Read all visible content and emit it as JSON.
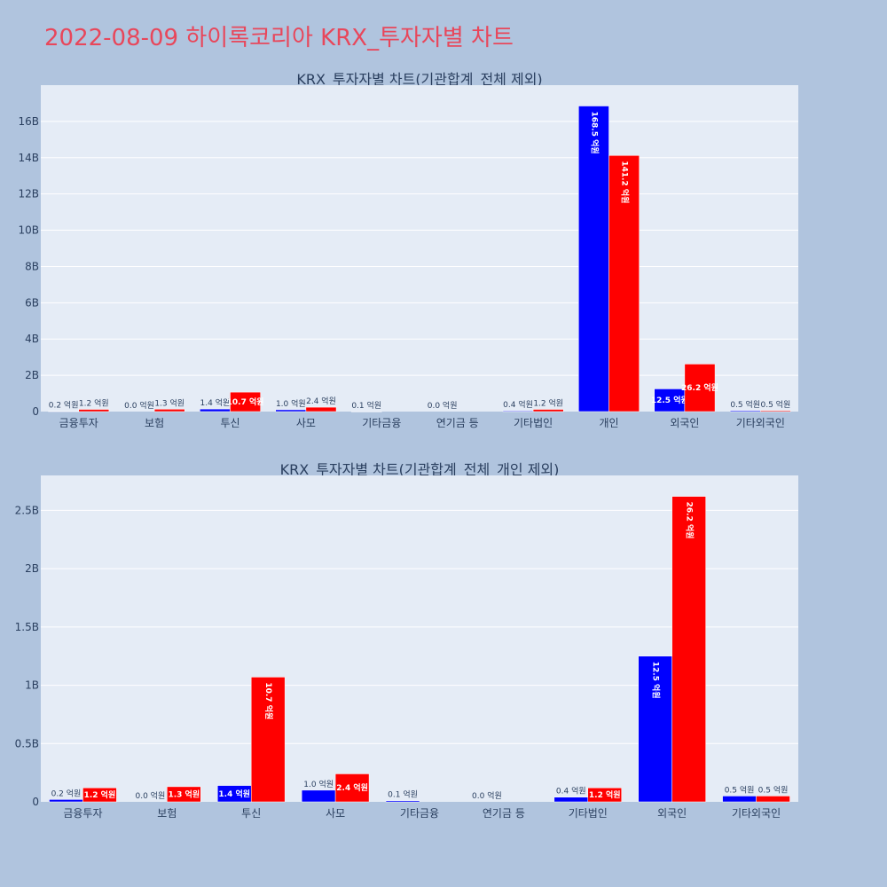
{
  "title": "2022-08-09 하이록코리아 KRX_투자자별 차트",
  "colors": {
    "buy": "#0000ff",
    "sell": "#ff0000",
    "plot_bg": "#e5ecf6",
    "page_bg": "#b0c4de",
    "title": "#e8475b"
  },
  "chart_data": [
    {
      "type": "bar",
      "title": "KRX_투자자별 차트(기관합계_전체 제외)",
      "categories": [
        "금융투자",
        "보험",
        "투신",
        "사모",
        "기타금융",
        "연기금 등",
        "기타법인",
        "개인",
        "외국인",
        "기타외국인"
      ],
      "series": [
        {
          "values": [
            20000000,
            0,
            140000000,
            100000000,
            10000000,
            0,
            40000000,
            16850000000,
            1250000000,
            50000000
          ],
          "labels": [
            "0.2 억원",
            "0.0 억원",
            "1.4 억원",
            "1.0 억원",
            "0.1 억원",
            "0.0 억원",
            "0.4 억원",
            "168.5 억원",
            "12.5 억원",
            "0.5 억원"
          ]
        },
        {
          "values": [
            120000000,
            130000000,
            1070000000,
            240000000,
            null,
            null,
            120000000,
            14120000000,
            2620000000,
            50000000
          ],
          "labels": [
            "1.2 억원",
            "1.3 억원",
            "10.7 억원",
            "2.4 억원",
            "",
            "",
            "1.2 억원",
            "141.2 억원",
            "26.2 억원",
            "0.5 억원"
          ]
        }
      ],
      "ylim": [
        0,
        18000000000
      ],
      "yticks": [
        0,
        2000000000,
        4000000000,
        6000000000,
        8000000000,
        10000000000,
        12000000000,
        14000000000,
        16000000000
      ],
      "ytick_labels": [
        "0",
        "2B",
        "4B",
        "6B",
        "8B",
        "10B",
        "12B",
        "14B",
        "16B"
      ],
      "grid": true,
      "barmode": "group"
    },
    {
      "type": "bar",
      "title": "KRX_투자자별 차트(기관합계_전체_개인 제외)",
      "categories": [
        "금융투자",
        "보험",
        "투신",
        "사모",
        "기타금융",
        "연기금 등",
        "기타법인",
        "외국인",
        "기타외국인"
      ],
      "series": [
        {
          "values": [
            20000000,
            0,
            140000000,
            100000000,
            10000000,
            0,
            40000000,
            1250000000,
            50000000
          ],
          "labels": [
            "0.2 억원",
            "0.0 억원",
            "1.4 억원",
            "1.0 억원",
            "0.1 억원",
            "0.0 억원",
            "0.4 억원",
            "12.5 억원",
            "0.5 억원"
          ]
        },
        {
          "values": [
            120000000,
            130000000,
            1070000000,
            240000000,
            null,
            null,
            120000000,
            2620000000,
            50000000
          ],
          "labels": [
            "1.2 억원",
            "1.3 억원",
            "10.7 억원",
            "2.4 억원",
            "",
            "",
            "1.2 억원",
            "26.2 억원",
            "0.5 억원"
          ]
        }
      ],
      "ylim": [
        0,
        2800000000
      ],
      "yticks": [
        0,
        500000000,
        1000000000,
        1500000000,
        2000000000,
        2500000000
      ],
      "ytick_labels": [
        "0",
        "0.5B",
        "1B",
        "1.5B",
        "2B",
        "2.5B"
      ],
      "grid": true,
      "barmode": "group"
    }
  ]
}
